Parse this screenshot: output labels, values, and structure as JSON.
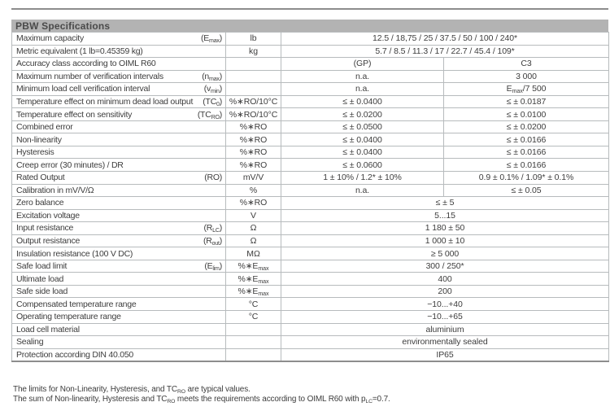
{
  "header": {
    "title": "PBW Specifications",
    "bar_color": "#b3b3b3",
    "title_color": "#4a4a4a"
  },
  "colors": {
    "top_rule": "#8d8d8d",
    "table_border": "#b7bbbd",
    "bottom_rule": "#8d8d8d",
    "text": "#3d3d3d",
    "page_background": "#ffffff"
  },
  "table": {
    "rows": [
      {
        "param": "Maximum capacity",
        "symbol": "(E_{max})",
        "unit": "lb",
        "span": true,
        "values": [
          "12.5 / 18,75 / 25 / 37.5 / 50 / 100 / 240*"
        ]
      },
      {
        "param": "Metric equivalent (1 lb=0.45359 kg)",
        "symbol": "",
        "unit": "kg",
        "span": true,
        "values": [
          "5.7 / 8.5 / 11.3 / 17 / 22.7 / 45.4 / 109*"
        ]
      },
      {
        "param": "Accuracy class according to OIML R60",
        "symbol": "",
        "unit": "",
        "span": false,
        "values": [
          "(GP)",
          "C3"
        ]
      },
      {
        "param": "Maximum number of verification intervals",
        "symbol": "(n_{max})",
        "unit": "",
        "span": false,
        "values": [
          "n.a.",
          "3 000"
        ]
      },
      {
        "param": "Minimum load cell verification interval",
        "symbol": "(v_{min})",
        "unit": "",
        "span": false,
        "values": [
          "n.a.",
          "E_{max}/7 500"
        ]
      },
      {
        "param": "Temperature effect on minimum dead load output",
        "symbol": "(TC_{0})",
        "unit": "%∗RO/10°C",
        "span": false,
        "values": [
          "≤ ± 0.0400",
          "≤ ± 0.0187"
        ]
      },
      {
        "param": "Temperature effect on sensitivity",
        "symbol": "(TC_{RO})",
        "unit": "%∗RO/10°C",
        "span": false,
        "values": [
          "≤ ± 0.0200",
          "≤ ± 0.0100"
        ]
      },
      {
        "param": "Combined error",
        "symbol": "",
        "unit": "%∗RO",
        "span": false,
        "values": [
          "≤ ± 0.0500",
          "≤ ± 0.0200"
        ]
      },
      {
        "param": "Non-linearity",
        "symbol": "",
        "unit": "%∗RO",
        "span": false,
        "values": [
          "≤ ± 0.0400",
          "≤ ± 0.0166"
        ]
      },
      {
        "param": "Hysteresis",
        "symbol": "",
        "unit": "%∗RO",
        "span": false,
        "values": [
          "≤ ± 0.0400",
          "≤ ± 0.0166"
        ]
      },
      {
        "param": "Creep error (30 minutes) / DR",
        "symbol": "",
        "unit": "%∗RO",
        "span": false,
        "values": [
          "≤ ± 0.0600",
          "≤ ± 0.0166"
        ]
      },
      {
        "param": "Rated Output",
        "symbol": "(RO)",
        "unit": "mV/V",
        "span": false,
        "values": [
          "1 ± 10% / 1.2* ± 10%",
          "0.9 ± 0.1% / 1.09* ± 0.1%"
        ]
      },
      {
        "param": "Calibration in mV/V/Ω",
        "symbol": "",
        "unit": "%",
        "span": false,
        "values": [
          "n.a.",
          "≤ ± 0.05"
        ]
      },
      {
        "param": "Zero balance",
        "symbol": "",
        "unit": "%∗RO",
        "span": true,
        "values": [
          "≤ ± 5"
        ]
      },
      {
        "param": "Excitation voltage",
        "symbol": "",
        "unit": "V",
        "span": true,
        "values": [
          "5...15"
        ]
      },
      {
        "param": "Input resistance",
        "symbol": "(R_{LC})",
        "unit": "Ω",
        "span": true,
        "values": [
          "1 180 ± 50"
        ]
      },
      {
        "param": "Output resistance",
        "symbol": "(R_{out})",
        "unit": "Ω",
        "span": true,
        "values": [
          "1 000 ± 10"
        ]
      },
      {
        "param": "Insulation resistance (100 V DC)",
        "symbol": "",
        "unit": "MΩ",
        "span": true,
        "values": [
          "≥ 5 000"
        ]
      },
      {
        "param": "Safe load limit",
        "symbol": "(E_{lim})",
        "unit": "%∗E_{max}",
        "span": true,
        "values": [
          "300 / 250*"
        ]
      },
      {
        "param": "Ultimate load",
        "symbol": "",
        "unit": "%∗E_{max}",
        "span": true,
        "values": [
          "400"
        ]
      },
      {
        "param": "Safe side load",
        "symbol": "",
        "unit": "%∗E_{max}",
        "span": true,
        "values": [
          "200"
        ]
      },
      {
        "param": "Compensated temperature range",
        "symbol": "",
        "unit": "°C",
        "span": true,
        "values": [
          "−10...+40"
        ]
      },
      {
        "param": "Operating temperature range",
        "symbol": "",
        "unit": "°C",
        "span": true,
        "values": [
          "−10...+65"
        ]
      },
      {
        "param": "Load cell material",
        "symbol": "",
        "unit": "",
        "span": true,
        "values": [
          "aluminium"
        ]
      },
      {
        "param": "Sealing",
        "symbol": "",
        "unit": "",
        "span": true,
        "values": [
          "environmentally sealed"
        ]
      },
      {
        "param": "Protection according DIN 40.050",
        "symbol": "",
        "unit": "",
        "span": true,
        "values": [
          "IP65"
        ]
      }
    ]
  },
  "notes": {
    "lines": [
      "The limits for Non-Linearity, Hysteresis, and TC_{RO} are typical values.",
      "The sum of Non-linearity, Hysteresis and TC_{RO} meets the requirements according to OIML R60 with p_{LC}=0.7."
    ]
  }
}
